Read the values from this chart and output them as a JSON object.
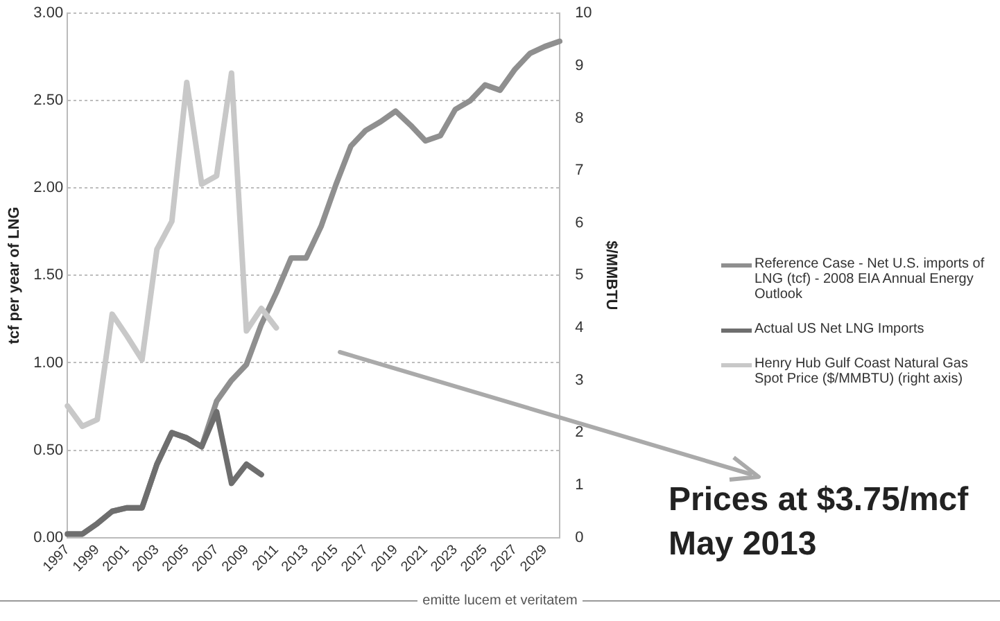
{
  "chart_data": {
    "type": "line",
    "categories": [
      "1997",
      null,
      "1999",
      null,
      "2001",
      null,
      "2003",
      null,
      "2005",
      null,
      "2007",
      null,
      "2009",
      null,
      "2011",
      null,
      "2013",
      null,
      "2015",
      null,
      "2017",
      null,
      "2019",
      null,
      "2021",
      null,
      "2023",
      null,
      "2025",
      null,
      "2027",
      null,
      "2029",
      null
    ],
    "series": [
      {
        "name": "Reference Case - Net U.S. imports of LNG (tcf) - 2008 EIA Annual Energy Outlook",
        "color": "#8f8f8f",
        "values": [
          0.02,
          0.02,
          0.08,
          0.15,
          0.17,
          0.17,
          0.42,
          0.6,
          0.57,
          0.52,
          0.78,
          0.9,
          0.99,
          1.22,
          1.4,
          1.6,
          1.6,
          1.78,
          2.02,
          2.24,
          2.33,
          2.38,
          2.44,
          2.36,
          2.27,
          2.3,
          2.45,
          2.5,
          2.59,
          2.56,
          2.68,
          2.77,
          2.81,
          2.84
        ]
      },
      {
        "name": "Actual US Net LNG Imports",
        "color": "#6e6e6e",
        "values": [
          0.02,
          0.02,
          0.08,
          0.15,
          0.17,
          0.17,
          0.42,
          0.6,
          0.57,
          0.52,
          0.72,
          0.31,
          0.42,
          0.36,
          null,
          null,
          null,
          null,
          null,
          null,
          null,
          null,
          null,
          null,
          null,
          null,
          null,
          null,
          null,
          null,
          null,
          null,
          null,
          null
        ]
      },
      {
        "name": "Henry Hub Gulf Coast Natural Gas Spot Price ($/MMBTU) (right axis)",
        "color": "#c8c8c8",
        "axis": "y2",
        "values": [
          2.51,
          2.12,
          2.25,
          4.26,
          3.84,
          3.39,
          5.5,
          6.03,
          8.68,
          6.74,
          6.9,
          8.86,
          3.94,
          4.37,
          4.0,
          null,
          null,
          null,
          null,
          null,
          null,
          null,
          null,
          null,
          null,
          null,
          null,
          null,
          null,
          null,
          null,
          null,
          null,
          null
        ]
      }
    ],
    "ylabel": "tcf per year of LNG",
    "y2label": "$/MMBTU",
    "ylim": [
      0,
      3
    ],
    "yticks": [
      {
        "value": 0,
        "label": "0.00"
      },
      {
        "value": 0.5,
        "label": "0.50"
      },
      {
        "value": 1,
        "label": "1.00"
      },
      {
        "value": 1.5,
        "label": "1.50"
      },
      {
        "value": 2,
        "label": "2.00"
      },
      {
        "value": 2.5,
        "label": "2.50"
      },
      {
        "value": 3,
        "label": "3.00"
      }
    ],
    "y2lim": [
      0,
      10
    ],
    "y2ticks": [
      0,
      1,
      2,
      3,
      4,
      5,
      6,
      7,
      8,
      9,
      10
    ],
    "grid": "y",
    "legend": "right",
    "marker": "none",
    "line_style": "solid",
    "annotations": [
      "Prices at $3.75/mcf",
      "May 2013",
      "emitte lucem et veritatem"
    ]
  }
}
